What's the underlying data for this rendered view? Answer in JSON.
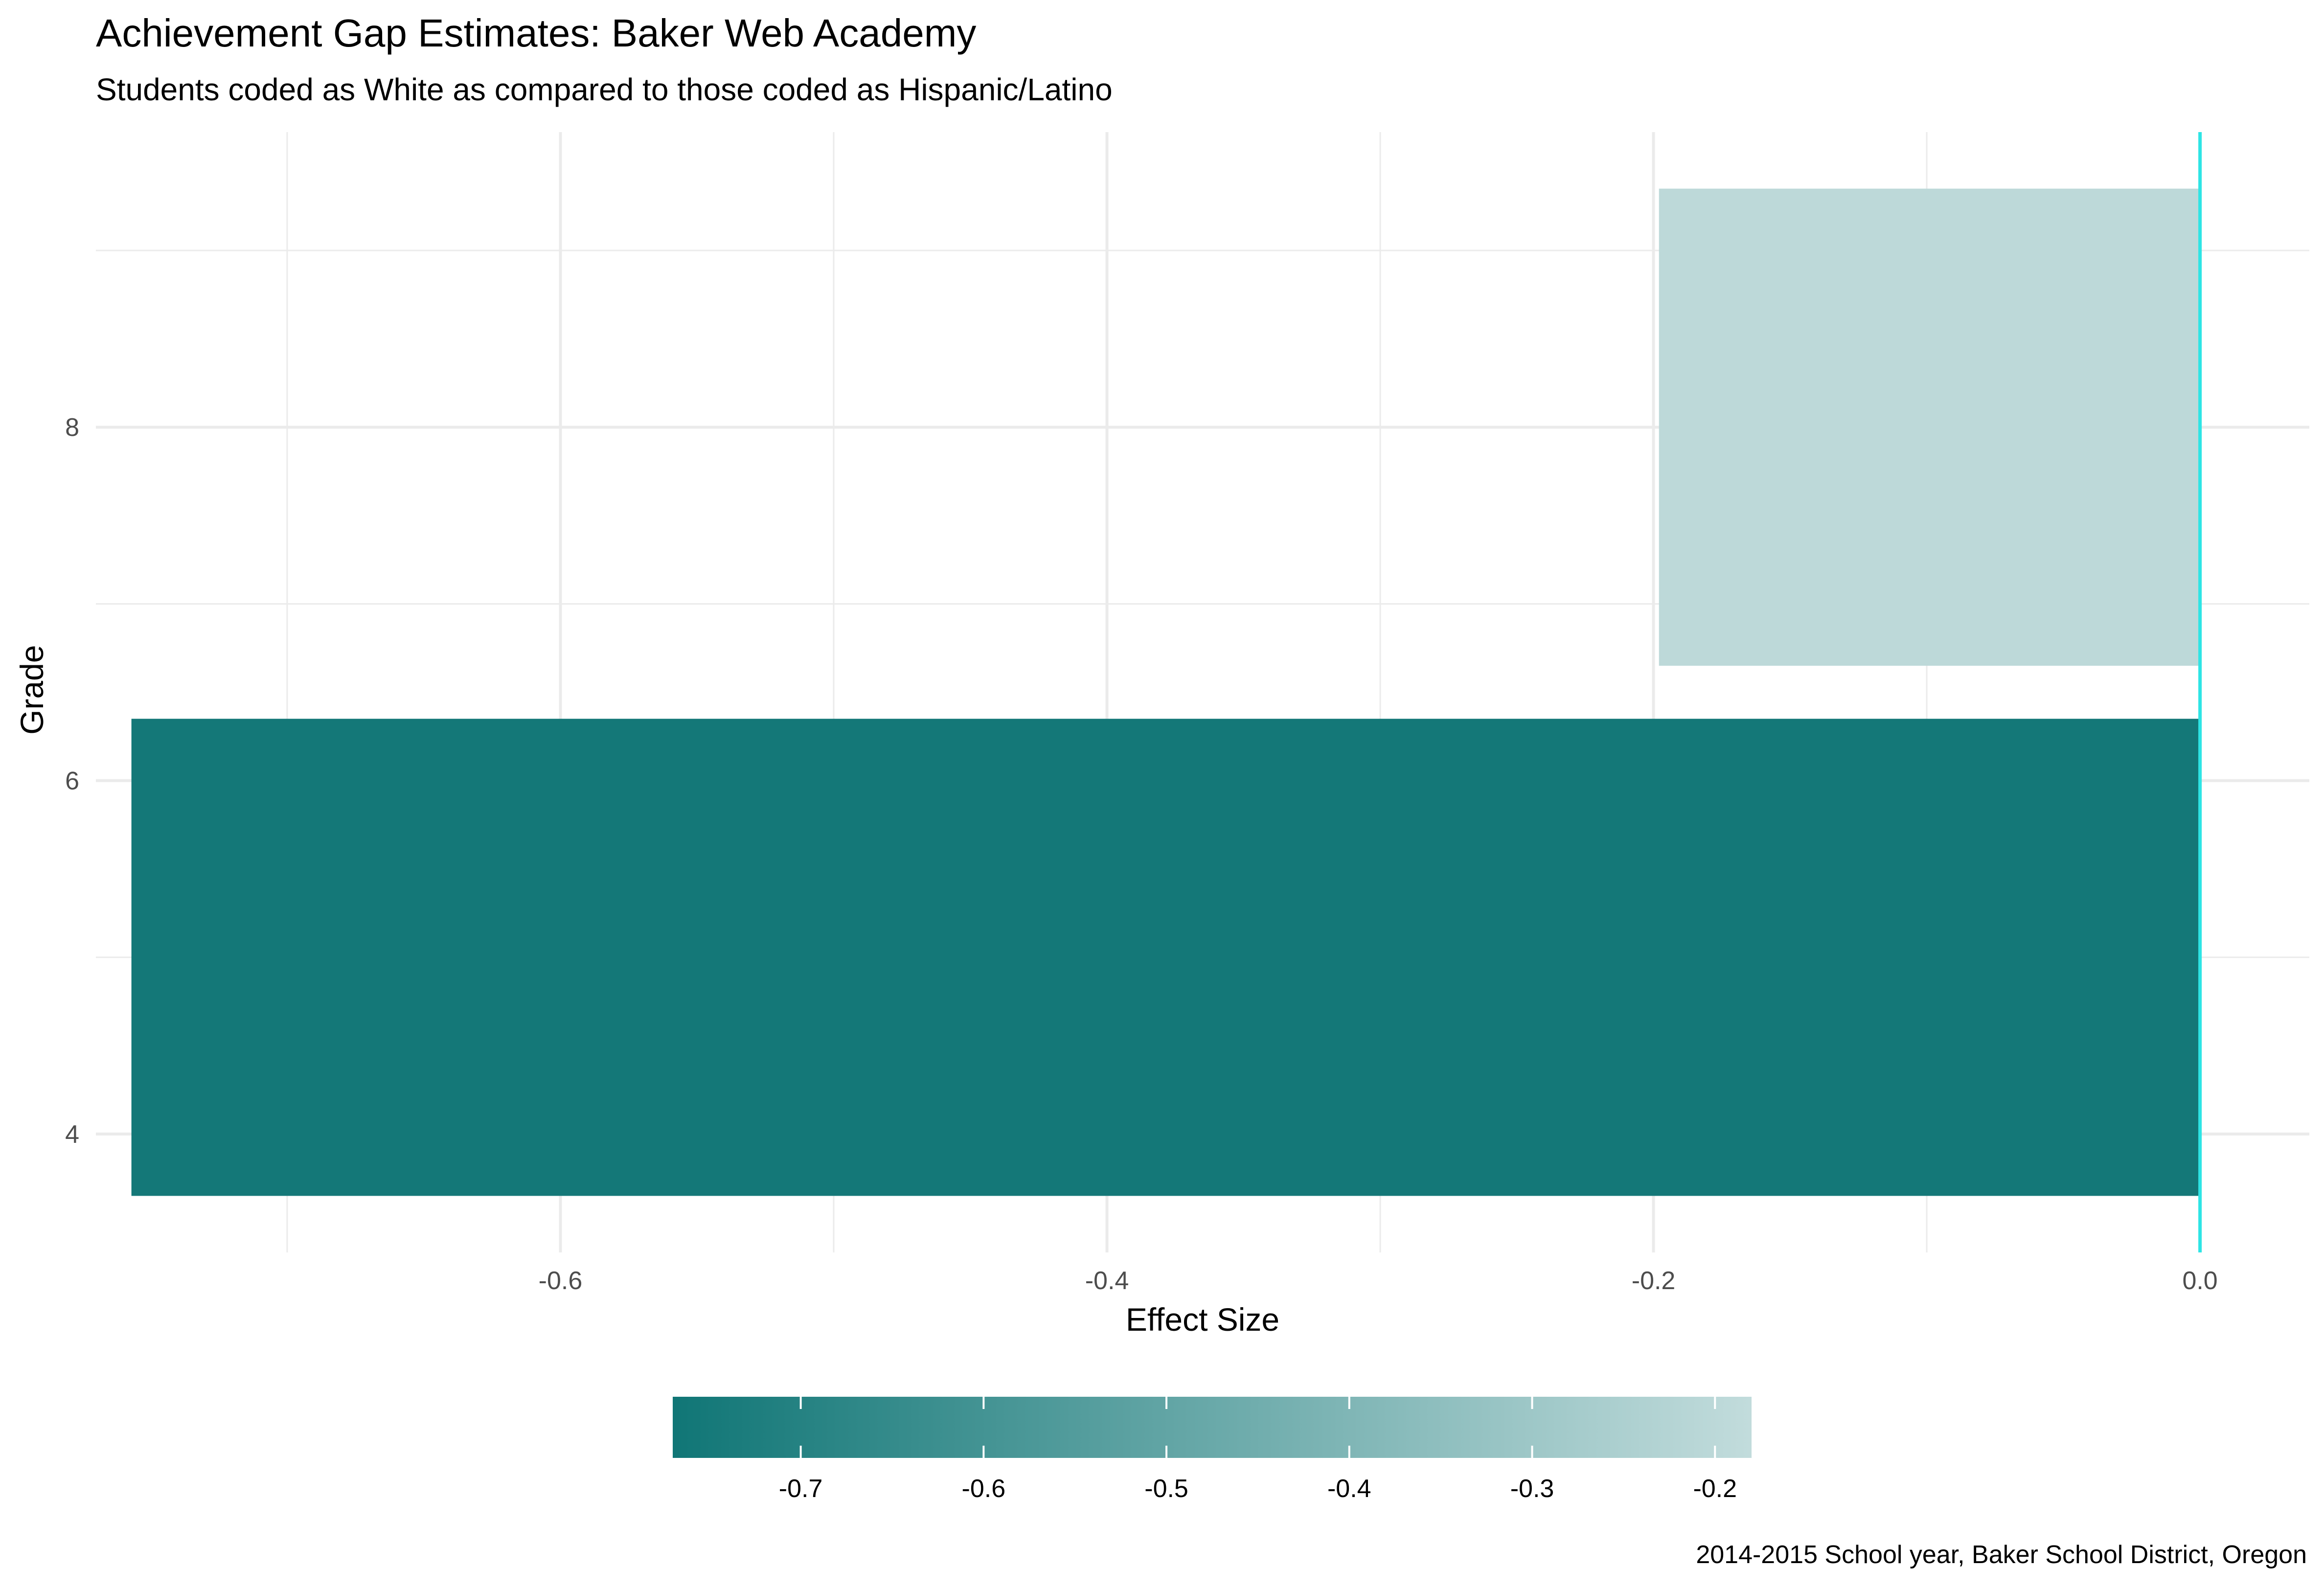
{
  "chart_data": {
    "type": "bar",
    "orientation": "horizontal",
    "title": "Achievement Gap Estimates: Baker Web Academy",
    "subtitle": "Students coded as White as compared to those coded as Hispanic/Latino",
    "caption": "2014-2015 School year, Baker School District, Oregon",
    "xlabel": "Effect Size",
    "ylabel": "Grade",
    "xlim": [
      -0.77,
      0.04
    ],
    "ylim": [
      3.33,
      9.67
    ],
    "x_ticks": [
      -0.6,
      -0.4,
      -0.2,
      0.0
    ],
    "x_tick_labels": [
      "-0.6",
      "-0.4",
      "-0.2",
      "0.0"
    ],
    "y_ticks": [
      4,
      6,
      8
    ],
    "y_tick_labels": [
      "4",
      "6",
      "8"
    ],
    "grid": true,
    "reference_line": {
      "x": 0,
      "color": "#2ee5e5"
    },
    "bars": [
      {
        "y_start": 3.65,
        "y_end": 6.35,
        "value": -0.757
      },
      {
        "y_start": 6.65,
        "y_end": 9.35,
        "value": -0.198
      }
    ],
    "colorbar": {
      "position": "bottom",
      "range": [
        -0.77,
        -0.18
      ],
      "low_color": "#107676",
      "high_color": "#c2dcdc",
      "ticks": [
        -0.7,
        -0.6,
        -0.5,
        -0.4,
        -0.3,
        -0.2
      ],
      "tick_labels": [
        "-0.7",
        "-0.6",
        "-0.5",
        "-0.4",
        "-0.3",
        "-0.2"
      ]
    }
  }
}
